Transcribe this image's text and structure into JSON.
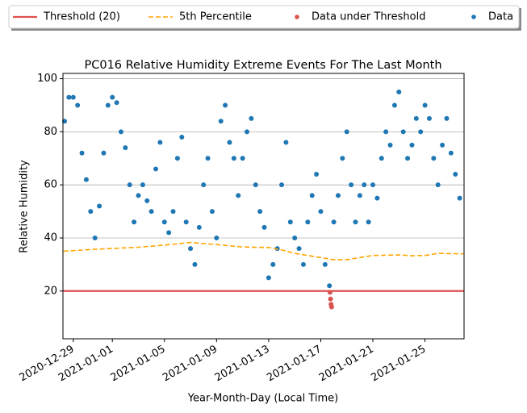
{
  "chart_data": {
    "type": "scatter",
    "title": "PC016 Relative Humidity Extreme Events For The Last Month",
    "x_label": "Year-Month-Day (Local Time)",
    "y_label": "Relative Humidity",
    "xlim": [
      "2020-12-28T05:00",
      "2021-01-28T00:00"
    ],
    "xticks": [
      "2020-12-29",
      "2021-01-01",
      "2021-01-05",
      "2021-01-09",
      "2021-01-13",
      "2021-01-17",
      "2021-01-21",
      "2021-01-25"
    ],
    "ylim": [
      2,
      102
    ],
    "yticks": [
      20,
      40,
      60,
      80,
      100
    ],
    "grid": "y",
    "legend": "top",
    "series": [
      {
        "name": "Threshold (20)",
        "kind": "hline",
        "color": "#e05050",
        "value": 20
      },
      {
        "name": "5th Percentile",
        "kind": "line",
        "style": "dashed",
        "color": "#ffa500",
        "x": [
          "2020-12-28T06:00",
          "2020-12-31T00:00",
          "2021-01-03T00:00",
          "2021-01-05T00:00",
          "2021-01-07T00:00",
          "2021-01-09T00:00",
          "2021-01-11T00:00",
          "2021-01-13T00:00",
          "2021-01-14T00:00",
          "2021-01-15T00:00",
          "2021-01-17T00:00",
          "2021-01-18T00:00",
          "2021-01-19T00:00",
          "2021-01-20T00:00",
          "2021-01-21T00:00",
          "2021-01-23T00:00",
          "2021-01-24T00:00",
          "2021-01-25T00:00",
          "2021-01-26T00:00",
          "2021-01-27T23:00"
        ],
        "values": [
          35,
          35.8,
          36.5,
          37.3,
          38.3,
          37.5,
          36.6,
          36.4,
          35.5,
          34.2,
          32.6,
          31.8,
          31.8,
          32.6,
          33.4,
          33.6,
          33.3,
          33.4,
          34.2,
          34.0
        ]
      },
      {
        "name": "Data under Threshold",
        "kind": "scatter",
        "color": "#d9534f",
        "x": [
          "2021-01-17T17:00",
          "2021-01-17T18:00",
          "2021-01-17T19:00",
          "2021-01-17T20:00"
        ],
        "values": [
          19.5,
          17,
          15,
          14
        ]
      },
      {
        "name": "Data",
        "kind": "scatter",
        "color": "#1f77b4",
        "x": [
          "2020-12-28T08:00",
          "2020-12-28T16:00",
          "2020-12-29T00:00",
          "2020-12-29T08:00",
          "2020-12-29T16:00",
          "2020-12-30T00:00",
          "2020-12-30T08:00",
          "2020-12-30T16:00",
          "2020-12-31T00:00",
          "2020-12-31T08:00",
          "2020-12-31T16:00",
          "2021-01-01T00:00",
          "2021-01-01T08:00",
          "2021-01-01T16:00",
          "2021-01-02T00:00",
          "2021-01-02T08:00",
          "2021-01-02T16:00",
          "2021-01-03T00:00",
          "2021-01-03T08:00",
          "2021-01-03T16:00",
          "2021-01-04T00:00",
          "2021-01-04T08:00",
          "2021-01-04T16:00",
          "2021-01-05T00:00",
          "2021-01-05T08:00",
          "2021-01-05T16:00",
          "2021-01-06T00:00",
          "2021-01-06T08:00",
          "2021-01-06T16:00",
          "2021-01-07T00:00",
          "2021-01-07T08:00",
          "2021-01-07T16:00",
          "2021-01-08T00:00",
          "2021-01-08T08:00",
          "2021-01-08T16:00",
          "2021-01-09T00:00",
          "2021-01-09T08:00",
          "2021-01-09T16:00",
          "2021-01-10T00:00",
          "2021-01-10T08:00",
          "2021-01-10T16:00",
          "2021-01-11T00:00",
          "2021-01-11T08:00",
          "2021-01-11T16:00",
          "2021-01-12T00:00",
          "2021-01-12T08:00",
          "2021-01-12T16:00",
          "2021-01-13T00:00",
          "2021-01-13T08:00",
          "2021-01-13T16:00",
          "2021-01-14T00:00",
          "2021-01-14T08:00",
          "2021-01-14T16:00",
          "2021-01-15T00:00",
          "2021-01-15T08:00",
          "2021-01-15T16:00",
          "2021-01-16T00:00",
          "2021-01-16T08:00",
          "2021-01-16T16:00",
          "2021-01-17T00:00",
          "2021-01-17T08:00",
          "2021-01-17T16:00",
          "2021-01-18T00:00",
          "2021-01-18T08:00",
          "2021-01-18T16:00",
          "2021-01-19T00:00",
          "2021-01-19T08:00",
          "2021-01-19T16:00",
          "2021-01-20T00:00",
          "2021-01-20T08:00",
          "2021-01-20T16:00",
          "2021-01-21T00:00",
          "2021-01-21T08:00",
          "2021-01-21T16:00",
          "2021-01-22T00:00",
          "2021-01-22T08:00",
          "2021-01-22T16:00",
          "2021-01-23T00:00",
          "2021-01-23T08:00",
          "2021-01-23T16:00",
          "2021-01-24T00:00",
          "2021-01-24T08:00",
          "2021-01-24T16:00",
          "2021-01-25T00:00",
          "2021-01-25T08:00",
          "2021-01-25T16:00",
          "2021-01-26T00:00",
          "2021-01-26T08:00",
          "2021-01-26T16:00",
          "2021-01-27T00:00",
          "2021-01-27T08:00",
          "2021-01-27T16:00"
        ],
        "values": [
          84,
          93,
          93,
          90,
          72,
          62,
          50,
          40,
          52,
          72,
          90,
          93,
          91,
          80,
          74,
          60,
          46,
          56,
          60,
          54,
          50,
          66,
          76,
          46,
          42,
          50,
          70,
          78,
          46,
          36,
          30,
          44,
          60,
          70,
          50,
          40,
          84,
          90,
          76,
          70,
          56,
          70,
          80,
          85,
          60,
          50,
          44,
          25,
          30,
          36,
          60,
          76,
          46,
          40,
          36,
          30,
          46,
          56,
          64,
          50,
          30,
          22,
          46,
          56,
          70,
          80,
          60,
          46,
          56,
          60,
          46,
          60,
          55,
          70,
          80,
          75,
          90,
          95,
          80,
          70,
          75,
          85,
          80,
          90,
          85,
          70,
          60,
          75,
          85,
          72,
          64,
          55
        ]
      }
    ]
  }
}
